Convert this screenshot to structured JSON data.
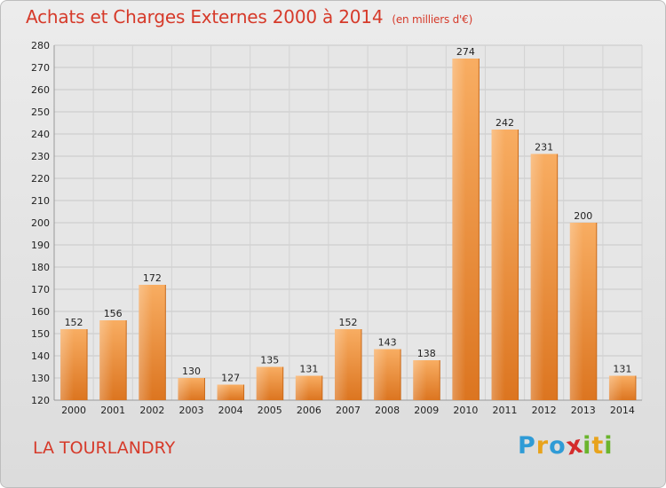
{
  "header": {
    "title": "Achats et Charges Externes 2000 à 2014",
    "unit": "(en milliers d'€)"
  },
  "footer": {
    "location": "LA TOURLANDRY",
    "logo": [
      "P",
      "r",
      "o",
      "x",
      "i",
      "t",
      "i"
    ],
    "logo_colors": [
      "#2f9bd6",
      "#e8a31c",
      "#2f9bd6",
      "#d42b2b",
      "#6ab42d",
      "#e8a31c",
      "#6ab42d"
    ]
  },
  "colors": {
    "title": "#d63a2a",
    "bar_light": "#f7a85a",
    "bar_dark": "#e07a22",
    "grid": "#c8c8c8"
  },
  "chart_data": {
    "type": "bar",
    "title": "Achats et Charges Externes 2000 à 2014",
    "subtitle": "(en milliers d'€)",
    "categories": [
      "2000",
      "2001",
      "2002",
      "2003",
      "2004",
      "2005",
      "2006",
      "2007",
      "2008",
      "2009",
      "2010",
      "2011",
      "2012",
      "2013",
      "2014"
    ],
    "values": [
      152,
      156,
      172,
      130,
      127,
      135,
      131,
      152,
      143,
      138,
      274,
      242,
      231,
      200,
      131
    ],
    "ylim": [
      120,
      280
    ],
    "yticks": [
      120,
      130,
      140,
      150,
      160,
      170,
      180,
      190,
      200,
      210,
      220,
      230,
      240,
      250,
      260,
      270,
      280
    ],
    "grid": true
  }
}
